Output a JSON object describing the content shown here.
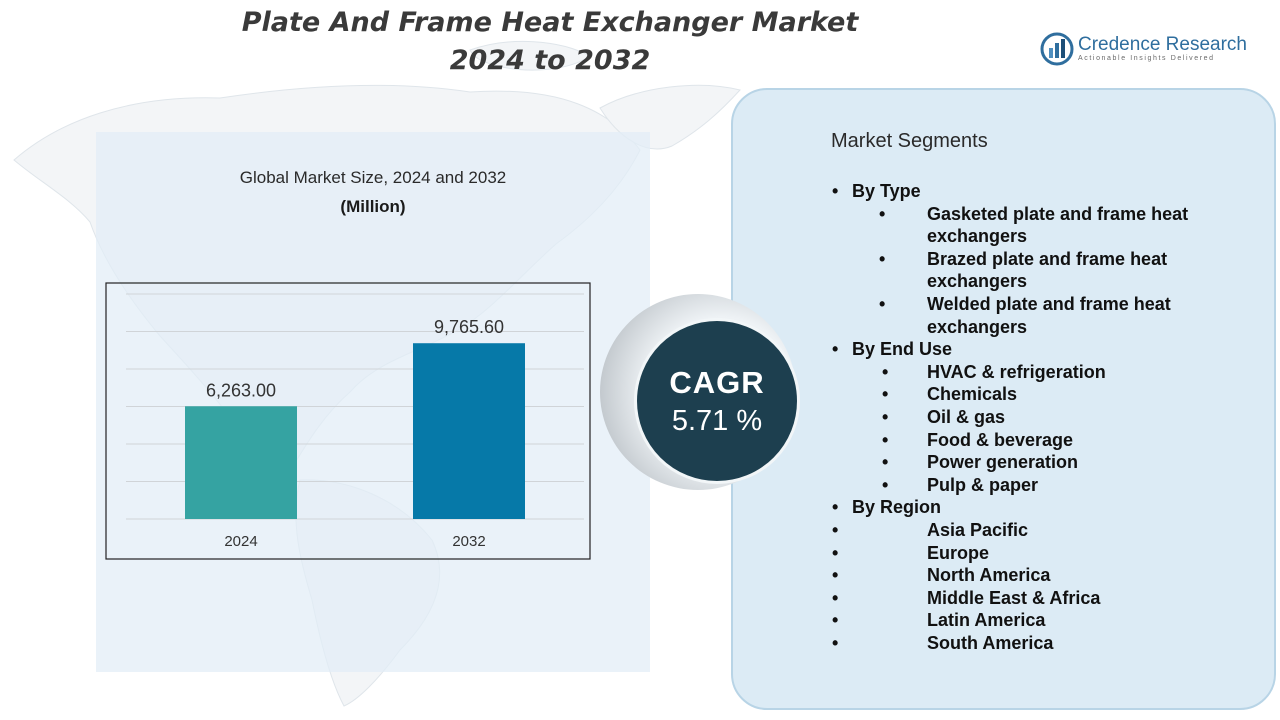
{
  "header": {
    "title_line1": "Plate And Frame Heat Exchanger Market",
    "title_line2": "2024 to 2032"
  },
  "logo": {
    "name": "Credence Research",
    "tagline": "Actionable Insights Delivered",
    "icon": "credence-logo-icon",
    "color": "#2f6e9e"
  },
  "chart_data": {
    "type": "bar",
    "title": "Global Market Size, 2024 and 2032",
    "subtitle": "(Million)",
    "categories": [
      "2024",
      "2032"
    ],
    "values": [
      6263.0,
      9765.6
    ],
    "value_labels": [
      "6,263.00",
      "9,765.60"
    ],
    "bar_colors": [
      "#35a3a2",
      "#0679a8"
    ],
    "ylim": [
      0,
      12500
    ],
    "grid": true,
    "gridlines": 6,
    "legend": "none"
  },
  "cagr": {
    "label": "CAGR",
    "value": "5.71 %"
  },
  "segments": {
    "heading": "Market Segments",
    "categories": [
      {
        "label": "By Type",
        "style": "type",
        "items": [
          "Gasketed plate and frame heat exchangers",
          "Brazed plate and frame heat exchangers",
          "Welded plate and frame heat exchangers"
        ]
      },
      {
        "label": "By End Use",
        "style": "end",
        "items": [
          "HVAC & refrigeration",
          "Chemicals",
          "Oil & gas",
          "Food & beverage",
          "Power generation",
          "Pulp & paper"
        ]
      },
      {
        "label": "By Region",
        "style": "region",
        "items": [
          "Asia Pacific",
          "Europe",
          "North America",
          "Middle East & Africa",
          "Latin America",
          "South America"
        ]
      }
    ]
  },
  "colors": {
    "left_panel": "#e2edf7",
    "right_panel": "#dcebf5",
    "cagr_circle": "#1d3f4f",
    "title_text": "#3a3a3a"
  }
}
